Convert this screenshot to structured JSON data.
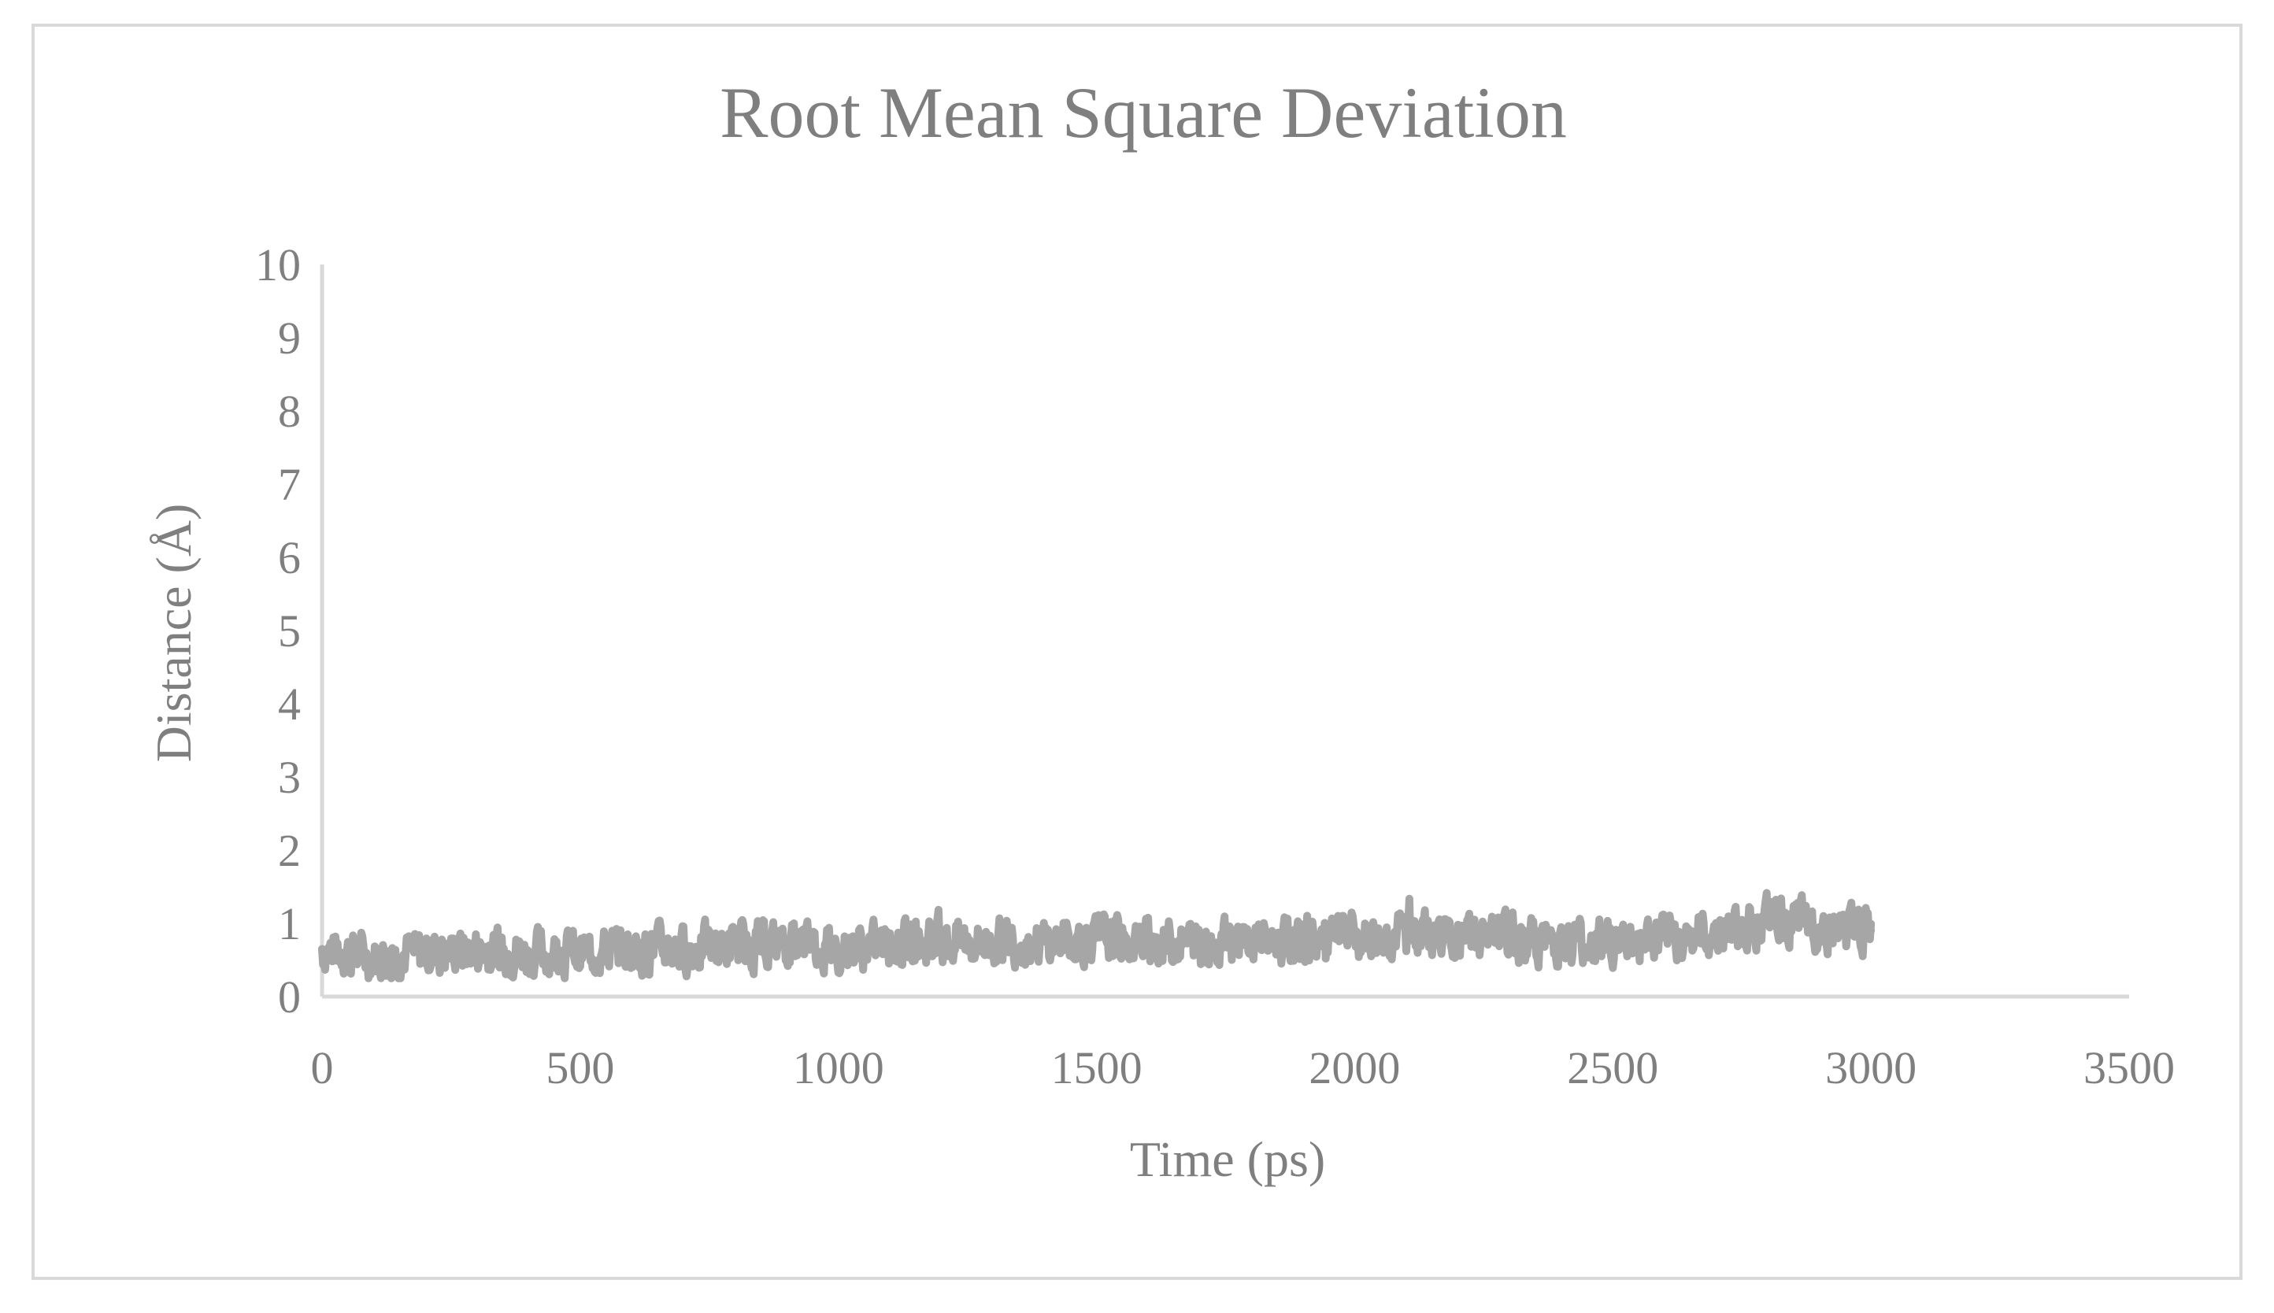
{
  "chart_data": {
    "type": "line",
    "title": "Root Mean Square Deviation",
    "xlabel": "Time (ps)",
    "ylabel": "Distance (Å)",
    "xlim": [
      0,
      3500
    ],
    "ylim": [
      0,
      10
    ],
    "x_ticks": [
      "0",
      "500",
      "1000",
      "1500",
      "2000",
      "2500",
      "3000",
      "3500"
    ],
    "y_ticks": [
      "0",
      "1",
      "2",
      "3",
      "4",
      "5",
      "6",
      "7",
      "8",
      "9",
      "10"
    ],
    "grid": false,
    "legend": "none",
    "series": [
      {
        "color": "#a6a6a6",
        "x": [
          0,
          100,
          200,
          300,
          400,
          500,
          600,
          700,
          800,
          900,
          1000,
          1100,
          1200,
          1300,
          1400,
          1500,
          1600,
          1700,
          1800,
          1900,
          2000,
          2100,
          2200,
          2300,
          2400,
          2500,
          2600,
          2700,
          2800,
          2900,
          3000
        ],
        "y": [
          0.65,
          0.55,
          0.6,
          0.65,
          0.6,
          0.6,
          0.65,
          0.65,
          0.7,
          0.7,
          0.65,
          0.7,
          0.75,
          0.75,
          0.75,
          0.8,
          0.75,
          0.75,
          0.75,
          0.75,
          0.8,
          0.85,
          0.8,
          0.8,
          0.75,
          0.75,
          0.8,
          0.85,
          1.05,
          0.95,
          0.9
        ]
      }
    ]
  }
}
